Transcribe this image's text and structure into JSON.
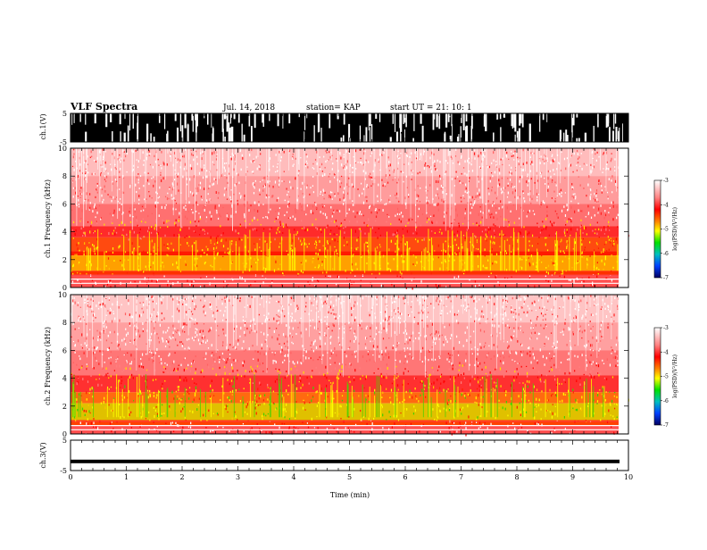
{
  "header": {
    "title": "VLF Spectra",
    "date": "Jul. 14, 2018",
    "station": "station= KAP",
    "start_ut": "start UT = 21: 10: 1"
  },
  "colors": {
    "spec_low": "#ffffff",
    "spec_mid": "#ff0000",
    "spec_high_yellow": "#ffff00",
    "spec_green": "#00c000",
    "spec_blue": "#0000c0"
  },
  "chart_data": [
    {
      "type": "line",
      "name": "ch1-waveform",
      "ylabel": "ch.1(V)",
      "ylim": [
        -5,
        5
      ],
      "yticks": [
        "5",
        "-5"
      ],
      "xlim": [
        0,
        10
      ],
      "description": "dense black waveform filling full range"
    },
    {
      "type": "heatmap",
      "name": "ch1-spectrogram",
      "ylabel": "ch.1 Frequency (kHz)",
      "ylim": [
        0,
        10
      ],
      "yticks": [
        "10",
        "8",
        "6",
        "4",
        "2",
        "0"
      ],
      "xlim": [
        0,
        10
      ],
      "colorbar": {
        "ticks": [
          "-3",
          "-4",
          "-5",
          "-6",
          "-7"
        ],
        "label": "log(PSD)(V²/Hz)",
        "range": [
          -7,
          -3
        ]
      }
    },
    {
      "type": "heatmap",
      "name": "ch2-spectrogram",
      "ylabel": "ch.2 Frequency (kHz)",
      "ylim": [
        0,
        10
      ],
      "yticks": [
        "10",
        "8",
        "6",
        "4",
        "2",
        "0"
      ],
      "xlim": [
        0,
        10
      ],
      "colorbar": {
        "ticks": [
          "-3",
          "-4",
          "-5",
          "-6",
          "-7"
        ],
        "label": "log(PSD)(V²/Hz)",
        "range": [
          -7,
          -3
        ]
      }
    },
    {
      "type": "line",
      "name": "ch3-waveform",
      "ylabel": "ch.3(V)",
      "ylim": [
        -5,
        5
      ],
      "yticks": [
        "5",
        "-5"
      ],
      "xlim": [
        0,
        10
      ],
      "description": "flat thick line near -2 V"
    }
  ],
  "xaxis": {
    "label": "Time (min)",
    "ticks": [
      "0",
      "1",
      "2",
      "3",
      "4",
      "5",
      "6",
      "7",
      "8",
      "9",
      "10"
    ]
  }
}
